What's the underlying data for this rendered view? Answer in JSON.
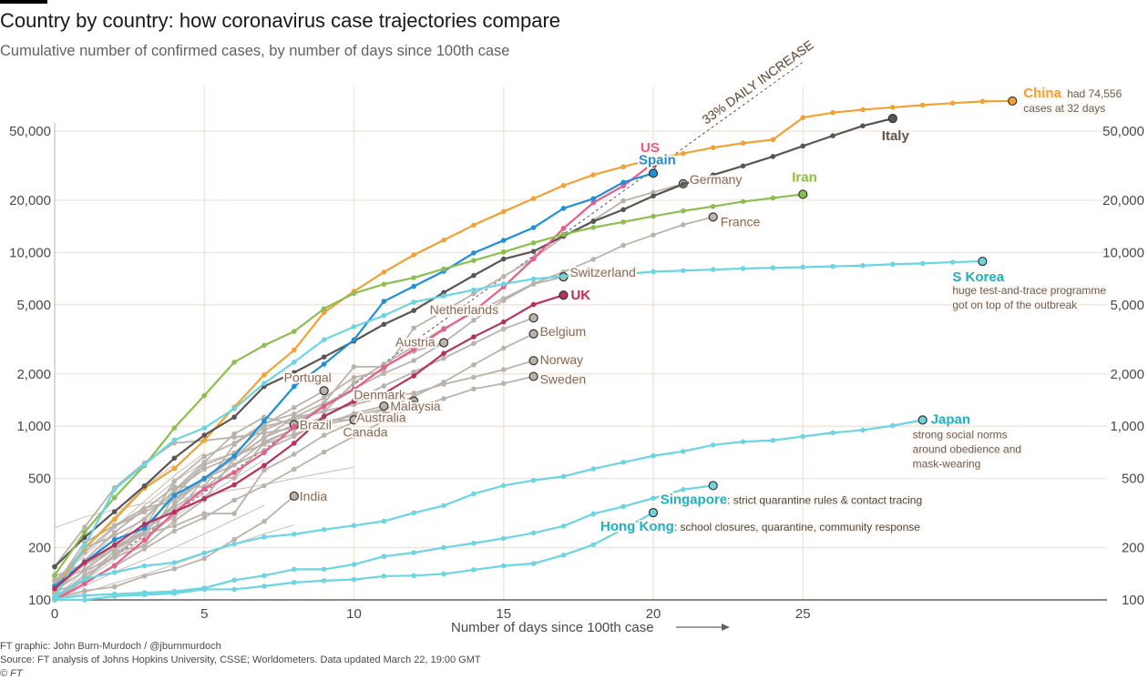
{
  "header": {
    "title": "Country by country: how coronavirus case trajectories compare",
    "subtitle": "Cumulative number of confirmed cases, by number of days since 100th case"
  },
  "footer": {
    "credit": "FT graphic: John Burn-Murdoch / @jburnmurdoch",
    "source": "Source: FT analysis of Johns Hopkins University, CSSE; Worldometers. Data updated March 22, 19:00 GMT",
    "copyright": "© FT"
  },
  "chart_data": {
    "type": "line",
    "title": "Country by country: how coronavirus case trajectories compare",
    "subtitle": "Cumulative number of confirmed cases, by number of days since 100th case",
    "xlabel": "Number of days since 100th case",
    "ylabel": "Cumulative number of confirmed cases",
    "yscale": "log",
    "xlim": [
      0,
      35
    ],
    "ylim": [
      100,
      80000
    ],
    "x_ticks": [
      0,
      5,
      10,
      15,
      20,
      25
    ],
    "x_tick_labels": [
      "0",
      "5",
      "10",
      "15",
      "20",
      "25"
    ],
    "y_ticks": [
      100,
      200,
      500,
      1000,
      2000,
      5000,
      10000,
      20000,
      50000
    ],
    "y_tick_labels": [
      "100",
      "200",
      "500",
      "1,000",
      "2,000",
      "5,000",
      "10,000",
      "20,000",
      "50,000"
    ],
    "grid": true,
    "reference_line": {
      "label": "33% DAILY INCREASE",
      "start_value": 100,
      "daily_growth": 0.33
    },
    "series": [
      {
        "name": "China",
        "color": "#f2a134",
        "highlight": true,
        "label_note": "had 74,556 cases at 32 days",
        "values": [
          114,
          198,
          291,
          440,
          571,
          830,
          1287,
          1975,
          2744,
          4515,
          5974,
          7711,
          9692,
          11791,
          14380,
          17205,
          20438,
          24324,
          28018,
          31161,
          34546,
          37198,
          40171,
          42638,
          44653,
          59804,
          63851,
          66492,
          68500,
          70548,
          72436,
          74185,
          74556
        ]
      },
      {
        "name": "Italy",
        "color": "#5a5552",
        "highlight": true,
        "values": [
          155,
          229,
          322,
          453,
          655,
          888,
          1128,
          1694,
          2036,
          2502,
          3089,
          3858,
          4636,
          5883,
          7375,
          9172,
          10149,
          12462,
          15113,
          17660,
          21157,
          24747,
          27980,
          31506,
          35713,
          41035,
          47021,
          53578,
          59138
        ]
      },
      {
        "name": "US",
        "color": "#e95d8c",
        "highlight": true,
        "values": [
          100,
          124,
          158,
          221,
          319,
          435,
          541,
          704,
          994,
          1301,
          1630,
          2183,
          2770,
          3613,
          4596,
          6344,
          9197,
          13779,
          19367,
          24192,
          32800
        ]
      },
      {
        "name": "Spain",
        "color": "#1f8fd6",
        "highlight": true,
        "values": [
          120,
          165,
          222,
          259,
          400,
          500,
          673,
          1073,
          1695,
          2277,
          3146,
          5232,
          6391,
          7798,
          9942,
          11748,
          13910,
          17963,
          20410,
          25374,
          28603
        ]
      },
      {
        "name": "Iran",
        "color": "#8cbf4f",
        "highlight": true,
        "values": [
          139,
          245,
          388,
          593,
          978,
          1501,
          2336,
          2922,
          3513,
          4747,
          5823,
          6566,
          7161,
          8042,
          9000,
          10075,
          11364,
          12729,
          13938,
          14991,
          16169,
          17361,
          18407,
          19644,
          20610,
          21638
        ]
      },
      {
        "name": "Germany",
        "color": "#bab3ab",
        "highlight": false,
        "values": [
          130,
          159,
          196,
          262,
          482,
          670,
          799,
          1040,
          1176,
          1457,
          1908,
          2078,
          3675,
          4585,
          5795,
          7272,
          9257,
          12327,
          15320,
          19848,
          22213,
          24873
        ]
      },
      {
        "name": "France",
        "color": "#bab3ab",
        "highlight": false,
        "values": [
          100,
          130,
          191,
          204,
          285,
          377,
          653,
          949,
          1126,
          1209,
          1784,
          2281,
          2876,
          3661,
          4499,
          5423,
          6633,
          7730,
          9134,
          10995,
          12612,
          14459,
          16018
        ]
      },
      {
        "name": "S Korea",
        "color": "#6bd5e1",
        "highlight": true,
        "label_note": "huge test-and-trace programme got on top of the outbreak",
        "values": [
          104,
          204,
          433,
          602,
          833,
          977,
          1261,
          1766,
          2337,
          3150,
          3736,
          4335,
          5186,
          5621,
          6088,
          6593,
          7041,
          7314,
          7478,
          7513,
          7755,
          7869,
          7979,
          8086,
          8162,
          8236,
          8320,
          8413,
          8565,
          8652,
          8799,
          8897
        ]
      },
      {
        "name": "Switzerland",
        "color": "#bab3ab",
        "highlight": false,
        "values": [
          120,
          214,
          268,
          337,
          374,
          491,
          652,
          858,
          1125,
          1359,
          2200,
          2200,
          2700,
          3028,
          4075,
          5294,
          6575,
          7245
        ]
      },
      {
        "name": "UK",
        "color": "#b5325f",
        "highlight": true,
        "values": [
          116,
          164,
          207,
          273,
          321,
          383,
          460,
          594,
          798,
          1140,
          1391,
          1543,
          1950,
          2626,
          3269,
          3983,
          5018,
          5683
        ]
      },
      {
        "name": "Netherlands",
        "color": "#bab3ab",
        "highlight": false,
        "values": [
          128,
          188,
          265,
          321,
          382,
          503,
          503,
          804,
          959,
          1135,
          1413,
          1705,
          2051,
          2460,
          2994,
          3631,
          4204
        ]
      },
      {
        "name": "Austria",
        "color": "#bab3ab",
        "highlight": false,
        "values": [
          102,
          131,
          182,
          246,
          302,
          504,
          655,
          860,
          1018,
          1332,
          1646,
          2013,
          2388,
          3024
        ]
      },
      {
        "name": "Belgium",
        "color": "#bab3ab",
        "highlight": false,
        "values": [
          109,
          169,
          200,
          239,
          267,
          314,
          314,
          559,
          689,
          886,
          1058,
          1243,
          1486,
          1795,
          2257,
          2815,
          3401
        ]
      },
      {
        "name": "Norway",
        "color": "#bab3ab",
        "highlight": false,
        "values": [
          113,
          147,
          176,
          205,
          400,
          598,
          702,
          996,
          1090,
          1221,
          1333,
          1463,
          1550,
          1746,
          1914,
          2118,
          2385
        ]
      },
      {
        "name": "Sweden",
        "color": "#bab3ab",
        "highlight": false,
        "values": [
          137,
          161,
          203,
          248,
          355,
          500,
          599,
          814,
          961,
          1022,
          1103,
          1190,
          1279,
          1439,
          1639,
          1763,
          1934
        ]
      },
      {
        "name": "Portugal",
        "color": "#bab3ab",
        "highlight": false,
        "values": [
          112,
          169,
          245,
          331,
          448,
          448,
          785,
          1020,
          1280,
          1600
        ]
      },
      {
        "name": "Denmark",
        "color": "#bab3ab",
        "highlight": false,
        "values": [
          156,
          262,
          442,
          615,
          801,
          827,
          864,
          914,
          977,
          1057,
          1151,
          1255,
          1395
        ]
      },
      {
        "name": "Australia",
        "color": "#bab3ab",
        "highlight": false,
        "values": [
          112,
          127,
          156,
          197,
          249,
          298,
          375,
          454,
          565,
          709,
          874,
          1071,
          1315
        ]
      },
      {
        "name": "Malaysia",
        "color": "#bab3ab",
        "highlight": false,
        "values": [
          129,
          149,
          197,
          238,
          428,
          566,
          673,
          790,
          900,
          1030,
          1183,
          1306
        ]
      },
      {
        "name": "Brazil",
        "color": "#bab3ab",
        "highlight": false,
        "values": [
          121,
          200,
          234,
          291,
          428,
          621,
          904,
          1128,
          1021
        ]
      },
      {
        "name": "Canada",
        "color": "#bab3ab",
        "highlight": false,
        "values": [
          103,
          138,
          176,
          252,
          342,
          441,
          598,
          727,
          873,
          1087,
          1087
        ]
      },
      {
        "name": "India",
        "color": "#bab3ab",
        "highlight": false,
        "values": [
          102,
          113,
          119,
          137,
          151,
          173,
          223,
          283,
          396
        ]
      },
      {
        "name": "Japan",
        "color": "#6bd5e1",
        "highlight": true,
        "label_note": "strong social norms around obedience and mask-wearing",
        "values": [
          105,
          132,
          144,
          157,
          164,
          186,
          210,
          230,
          239,
          254,
          268,
          284,
          317,
          349,
          408,
          455,
          488,
          514,
          568,
          620,
          675,
          716,
          780,
          814,
          829,
          873,
          917,
          950,
          1007,
          1086
        ]
      },
      {
        "name": "Singapore",
        "color": "#6bd5e1",
        "highlight": true,
        "label_note": "strict quarantine rules & contact tracing",
        "values": [
          102,
          106,
          108,
          110,
          112,
          117,
          130,
          138,
          150,
          150,
          160,
          178,
          187,
          200,
          212,
          226,
          243,
          266,
          313,
          345,
          385,
          432,
          455
        ]
      },
      {
        "name": "Hong Kong",
        "color": "#6bd5e1",
        "highlight": true,
        "label_note": "school closures, quarantine, community response",
        "values": [
          100,
          100,
          105,
          107,
          109,
          115,
          115,
          120,
          126,
          129,
          131,
          137,
          138,
          141,
          149,
          157,
          162,
          181,
          208,
          256,
          318
        ]
      }
    ],
    "annotations": [
      "33% DAILY INCREASE",
      "China had 74,556 cases at 32 days",
      "S Korea: huge test-and-trace programme got on top of the outbreak",
      "Japan: strong social norms around obedience and mask-wearing",
      "Singapore: strict quarantine rules & contact tracing",
      "Hong Kong: school closures, quarantine, community response"
    ]
  }
}
